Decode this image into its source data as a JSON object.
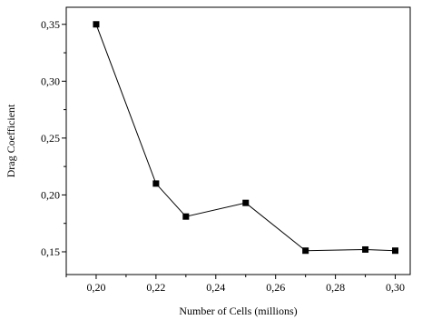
{
  "chart_data": {
    "type": "line",
    "title": "",
    "xlabel": "Number of Cells (millions)",
    "ylabel": "Drag Coefficient",
    "xlim": [
      0.19,
      0.305
    ],
    "ylim": [
      0.13,
      0.365
    ],
    "x_ticks": [
      0.2,
      0.22,
      0.24,
      0.26,
      0.28,
      0.3
    ],
    "x_tick_labels": [
      "0,20",
      "0,22",
      "0,24",
      "0,26",
      "0,28",
      "0,30"
    ],
    "y_ticks": [
      0.15,
      0.2,
      0.25,
      0.3,
      0.35
    ],
    "y_tick_labels": [
      "0,15",
      "0,20",
      "0,25",
      "0,30",
      "0,35"
    ],
    "grid": false,
    "legend": "none",
    "series": [
      {
        "x": [
          0.2,
          0.22,
          0.23,
          0.25,
          0.27,
          0.29,
          0.3
        ],
        "y": [
          0.35,
          0.21,
          0.181,
          0.193,
          0.151,
          0.152,
          0.151
        ],
        "color": "#000000",
        "marker": "square"
      }
    ]
  }
}
